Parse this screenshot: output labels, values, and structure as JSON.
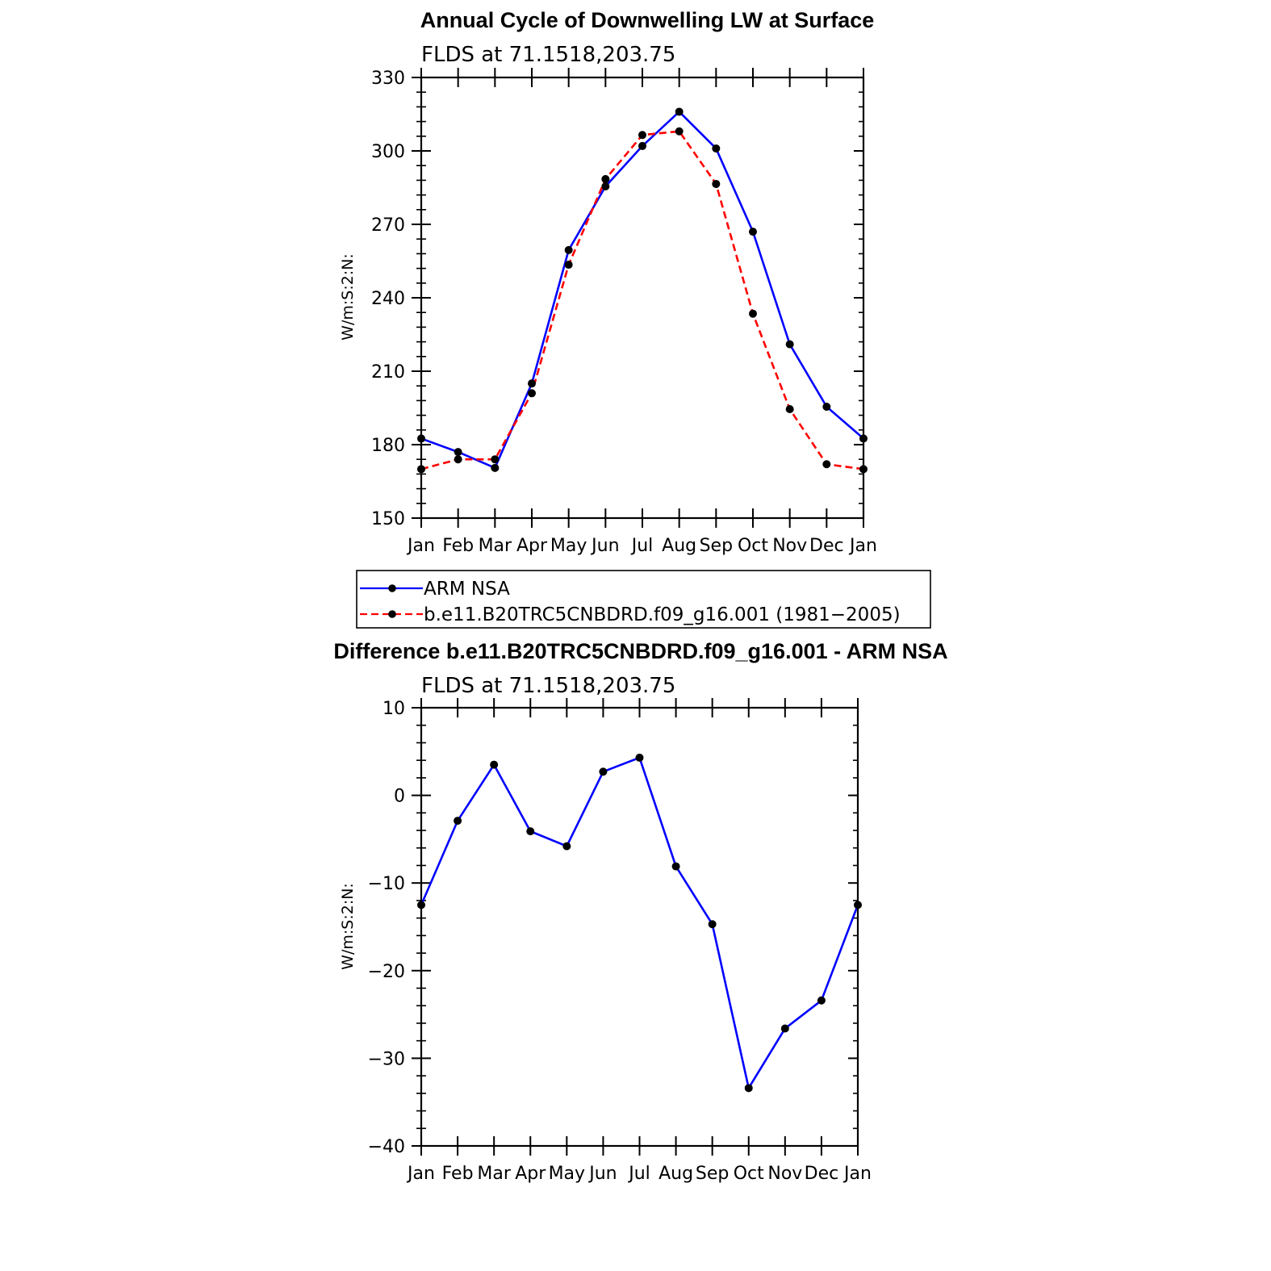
{
  "chart_data": [
    {
      "type": "line",
      "title": "Annual Cycle of Downwelling LW at Surface",
      "subtitle": "FLDS at 71.1518,203.75",
      "ylabel": "W/m:S:2:N:",
      "xlabel": "",
      "categories": [
        "Jan",
        "Feb",
        "Mar",
        "Apr",
        "May",
        "Jun",
        "Jul",
        "Aug",
        "Sep",
        "Oct",
        "Nov",
        "Dec",
        "Jan"
      ],
      "ylim": [
        150,
        330
      ],
      "yticks": [
        150,
        180,
        210,
        240,
        270,
        300,
        330
      ],
      "series": [
        {
          "name": "ARM NSA",
          "color": "#0000ff",
          "dash": "solid",
          "values": [
            182.5,
            177.0,
            170.5,
            205.0,
            259.5,
            285.5,
            302.0,
            316.0,
            301.0,
            267.0,
            221.0,
            195.5,
            182.5
          ]
        },
        {
          "name": "b.e11.B20TRC5CNBDRD.f09_g16.001 (1981−2005)",
          "color": "#ff0000",
          "dash": "dashed",
          "values": [
            170.0,
            174.0,
            174.0,
            201.0,
            253.5,
            288.5,
            306.5,
            308.0,
            286.5,
            233.5,
            194.5,
            172.0,
            170.0
          ]
        }
      ],
      "legend": "below"
    },
    {
      "type": "line",
      "title": "Difference b.e11.B20TRC5CNBDRD.f09_g16.001 - ARM NSA",
      "subtitle": "FLDS at 71.1518,203.75",
      "ylabel": "W/m:S:2:N:",
      "xlabel": "",
      "categories": [
        "Jan",
        "Feb",
        "Mar",
        "Apr",
        "May",
        "Jun",
        "Jul",
        "Aug",
        "Sep",
        "Oct",
        "Nov",
        "Dec",
        "Jan"
      ],
      "ylim": [
        -40,
        10
      ],
      "yticks": [
        -40,
        -30,
        -20,
        -10,
        0,
        10
      ],
      "ytick_labels": [
        "−40",
        "−30",
        "−20",
        "−10",
        "0",
        "10"
      ],
      "series": [
        {
          "color": "#0000ff",
          "dash": "solid",
          "values": [
            -12.5,
            -2.9,
            3.5,
            -4.1,
            -5.8,
            2.7,
            4.3,
            -8.1,
            -14.7,
            -33.4,
            -26.6,
            -23.4,
            -12.5
          ]
        }
      ]
    }
  ]
}
